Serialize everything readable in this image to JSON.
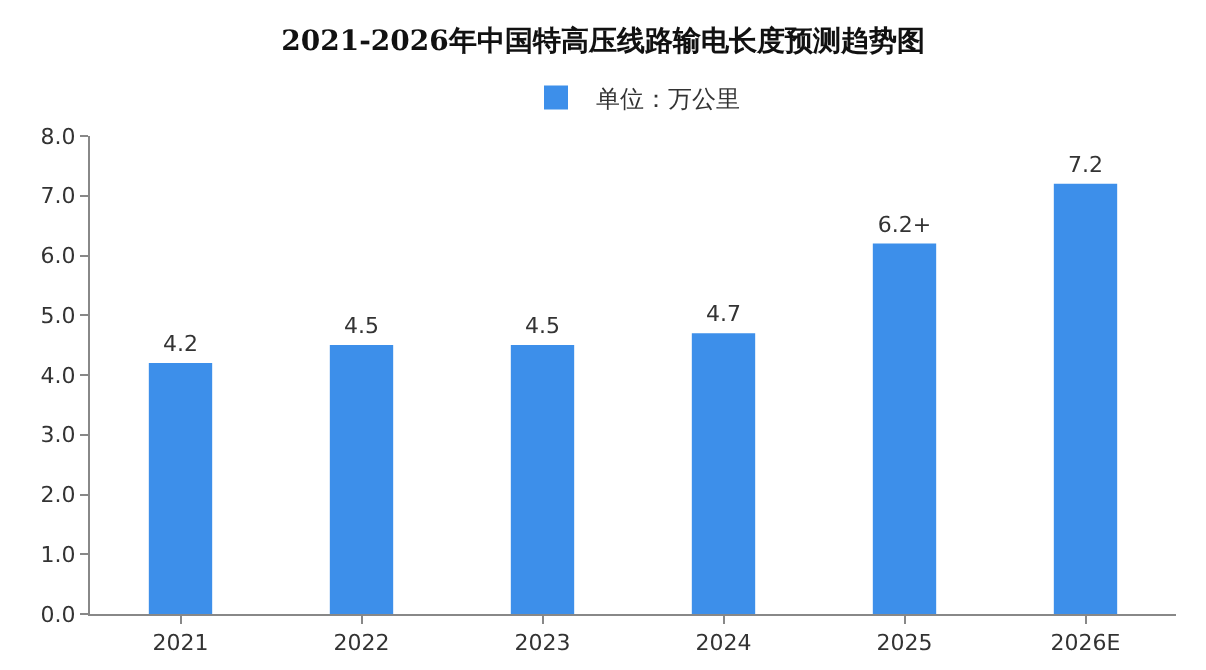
{
  "chart_data": {
    "type": "bar",
    "title": "2021-2026年中国特高压线路输电长度预测趋势图",
    "categories": [
      "2021",
      "2022",
      "2023",
      "2024",
      "2025",
      "2026E"
    ],
    "series": [
      {
        "name": "单位：万公里",
        "color": "#3d8fea",
        "values": [
          4.2,
          4.5,
          4.5,
          4.7,
          6.2,
          7.2
        ],
        "value_labels": [
          "4.2",
          "4.5",
          "4.5",
          "4.7",
          "6.2+",
          "7.2"
        ]
      }
    ],
    "ylim": [
      0,
      8
    ],
    "yticks": [
      {
        "value": 0,
        "label": "0.0"
      },
      {
        "value": 1,
        "label": "1.0"
      },
      {
        "value": 2,
        "label": "2.0"
      },
      {
        "value": 3,
        "label": "3.0"
      },
      {
        "value": 4,
        "label": "4.0"
      },
      {
        "value": 5,
        "label": "5.0"
      },
      {
        "value": 6,
        "label": "6.0"
      },
      {
        "value": 7,
        "label": "7.0"
      },
      {
        "value": 8,
        "label": "8.0"
      }
    ],
    "grid": false,
    "legend": "top"
  }
}
